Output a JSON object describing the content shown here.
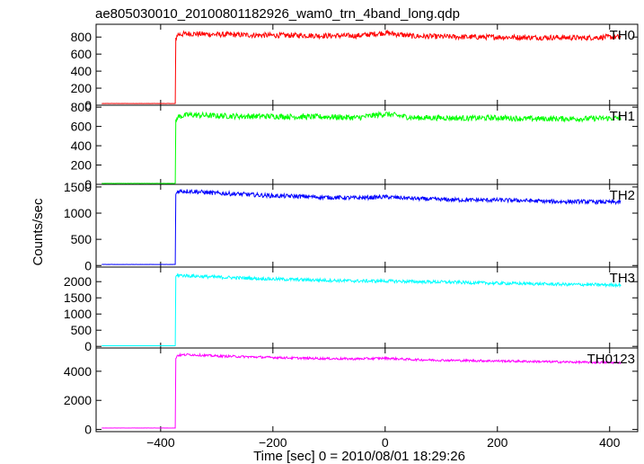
{
  "chart_data": {
    "type": "line",
    "title": "ae805030010_20100801182926_wam0_trn_4band_long.qdp",
    "xlabel": "Time [sec] 0 = 2010/08/01 18:29:26",
    "ylabel": "Counts/sec",
    "xlim": [
      -515,
      450
    ],
    "x_ticks": [
      -400,
      -200,
      0,
      200,
      400
    ],
    "x_tick_labels": [
      "−400",
      "−200",
      "0",
      "200",
      "400"
    ],
    "trigger_time": -373,
    "data_range": [
      -505,
      420
    ],
    "panels": [
      {
        "name": "TH0",
        "color": "#ff0000",
        "ylim": [
          0,
          950
        ],
        "yticks": [
          0,
          200,
          400,
          600,
          800
        ],
        "series_x": [
          -505,
          -374,
          -373,
          -370,
          -350,
          -300,
          -250,
          -200,
          -150,
          -100,
          -50,
          0,
          50,
          100,
          150,
          200,
          250,
          300,
          350,
          400,
          420
        ],
        "series_y": [
          20,
          20,
          780,
          830,
          840,
          830,
          825,
          820,
          820,
          815,
          815,
          850,
          810,
          805,
          800,
          800,
          795,
          795,
          790,
          800,
          800
        ]
      },
      {
        "name": "TH1",
        "color": "#00ff00",
        "ylim": [
          0,
          820
        ],
        "yticks": [
          0,
          200,
          400,
          600,
          800
        ],
        "series_x": [
          -505,
          -374,
          -373,
          -370,
          -350,
          -300,
          -250,
          -200,
          -150,
          -100,
          -50,
          0,
          50,
          100,
          150,
          200,
          250,
          300,
          350,
          400,
          420
        ],
        "series_y": [
          10,
          10,
          650,
          700,
          720,
          710,
          705,
          705,
          700,
          700,
          690,
          730,
          690,
          690,
          685,
          690,
          680,
          680,
          680,
          685,
          690
        ]
      },
      {
        "name": "TH2",
        "color": "#0000ff",
        "ylim": [
          -30,
          1550
        ],
        "yticks": [
          0,
          500,
          1000,
          1500
        ],
        "series_x": [
          -505,
          -374,
          -373,
          -370,
          -350,
          -300,
          -250,
          -200,
          -150,
          -100,
          -50,
          0,
          50,
          100,
          150,
          200,
          250,
          300,
          350,
          400,
          420
        ],
        "series_y": [
          20,
          20,
          1350,
          1420,
          1420,
          1380,
          1360,
          1330,
          1320,
          1300,
          1290,
          1310,
          1280,
          1260,
          1250,
          1250,
          1240,
          1220,
          1220,
          1210,
          1210
        ]
      },
      {
        "name": "TH3",
        "color": "#00ffff",
        "ylim": [
          -50,
          2450
        ],
        "yticks": [
          0,
          500,
          1000,
          1500,
          2000
        ],
        "series_x": [
          -505,
          -374,
          -373,
          -370,
          -350,
          -300,
          -250,
          -200,
          -150,
          -100,
          -50,
          0,
          50,
          100,
          150,
          200,
          250,
          300,
          350,
          400,
          420
        ],
        "series_y": [
          20,
          20,
          2150,
          2200,
          2180,
          2140,
          2110,
          2080,
          2060,
          2040,
          2020,
          2020,
          2000,
          1990,
          1970,
          1950,
          1940,
          1920,
          1910,
          1900,
          1900
        ]
      },
      {
        "name": "TH0123",
        "color": "#ff00ff",
        "ylim": [
          -150,
          5600
        ],
        "yticks": [
          0,
          2000,
          4000
        ],
        "series_x": [
          -505,
          -374,
          -373,
          -370,
          -350,
          -300,
          -250,
          -200,
          -150,
          -100,
          -50,
          0,
          50,
          100,
          150,
          200,
          250,
          300,
          350,
          400,
          420
        ],
        "series_y": [
          100,
          100,
          4900,
          5100,
          5150,
          5050,
          5000,
          4950,
          4900,
          4870,
          4850,
          4900,
          4800,
          4760,
          4730,
          4710,
          4680,
          4650,
          4620,
          4600,
          4600
        ]
      }
    ]
  }
}
